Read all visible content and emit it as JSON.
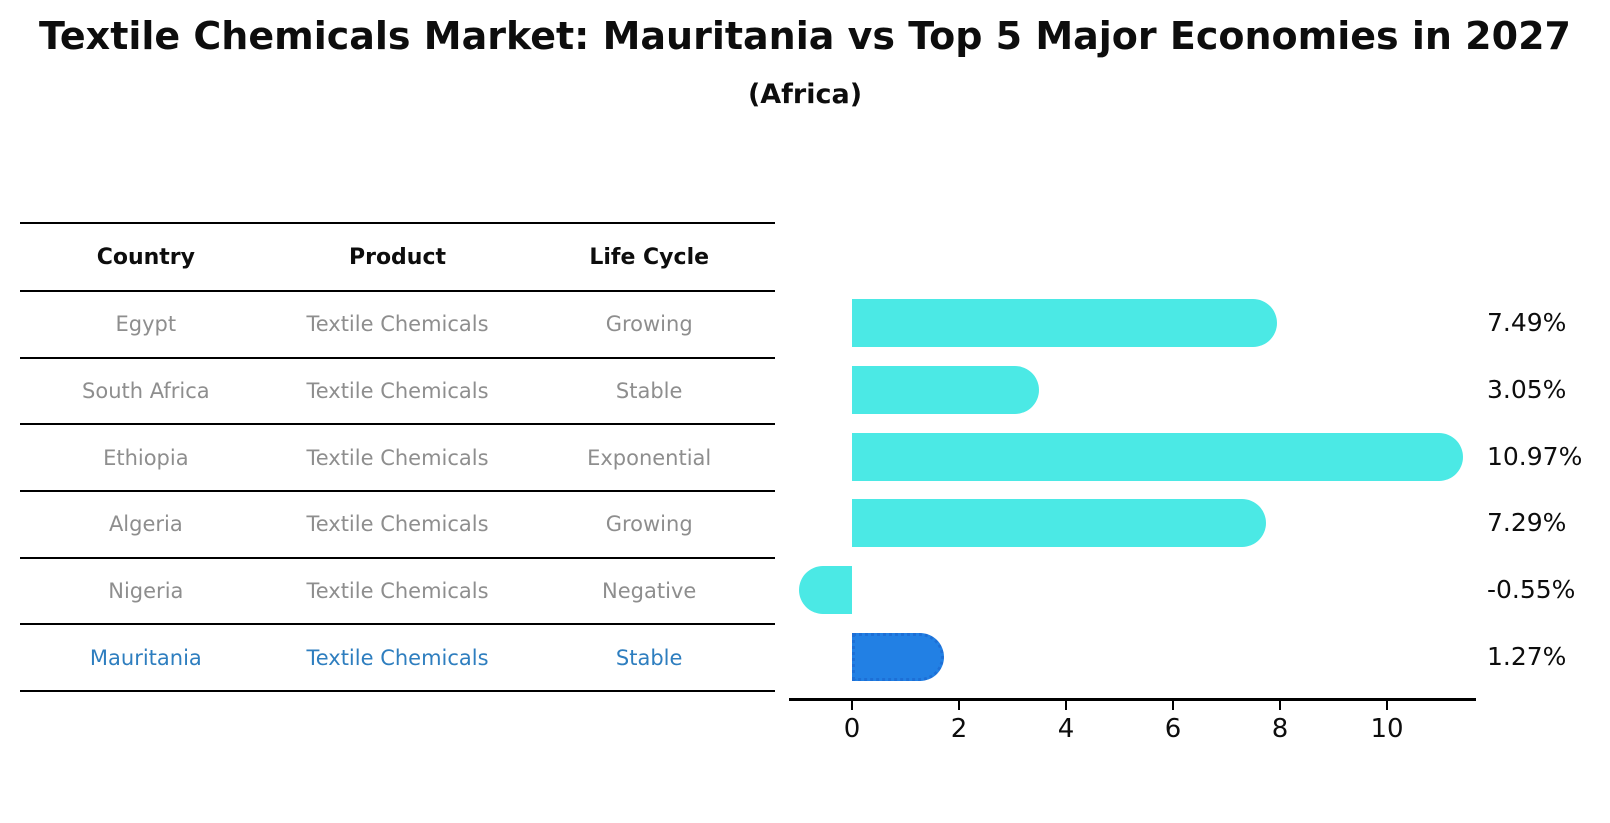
{
  "title": "Textile Chemicals Market: Mauritania vs Top 5 Major Economies in 2027",
  "subtitle": "(Africa)",
  "colors": {
    "bar_cyan": "#4be9e5",
    "bar_blue": "#2280e4",
    "bar_blue_dots": "#1d6fd6",
    "highlight_text": "#2e7ebf",
    "row_text": "#8e8e8e",
    "header_text": "#0d0d0d",
    "axis": "#000000",
    "background": "#ffffff"
  },
  "table": {
    "columns": [
      "Country",
      "Product",
      "Life Cycle"
    ],
    "rows": [
      {
        "country": "Egypt",
        "product": "Textile Chemicals",
        "life_cycle": "Growing",
        "highlight": false
      },
      {
        "country": "South Africa",
        "product": "Textile Chemicals",
        "life_cycle": "Stable",
        "highlight": false
      },
      {
        "country": "Ethiopia",
        "product": "Textile Chemicals",
        "life_cycle": "Exponential",
        "highlight": false
      },
      {
        "country": "Algeria",
        "product": "Textile Chemicals",
        "life_cycle": "Growing",
        "highlight": false
      },
      {
        "country": "Nigeria",
        "product": "Textile Chemicals",
        "life_cycle": "Negative",
        "highlight": false
      },
      {
        "country": "Mauritania",
        "product": "Textile Chemicals",
        "life_cycle": "Stable",
        "highlight": true
      }
    ]
  },
  "chart_data": {
    "type": "bar",
    "orientation": "horizontal",
    "title": "Textile Chemicals Market: Mauritania vs Top 5 Major Economies in 2027",
    "subtitle": "(Africa)",
    "categories": [
      "Egypt",
      "South Africa",
      "Ethiopia",
      "Algeria",
      "Nigeria",
      "Mauritania"
    ],
    "values": [
      7.49,
      3.05,
      10.97,
      7.29,
      -0.55,
      1.27
    ],
    "value_labels": [
      "7.49%",
      "3.05%",
      "10.97%",
      "7.29%",
      "-0.55%",
      "1.27%"
    ],
    "unit": "%",
    "xlabel": "",
    "ylabel": "",
    "xticks": [
      0,
      2,
      4,
      6,
      8,
      10
    ],
    "xlim": [
      -1.16,
      11.64
    ],
    "highlight_index": 5,
    "bar_color": "#4be9e5",
    "highlight_bar_color": "#2280e4",
    "grid": false,
    "legend": false
  }
}
